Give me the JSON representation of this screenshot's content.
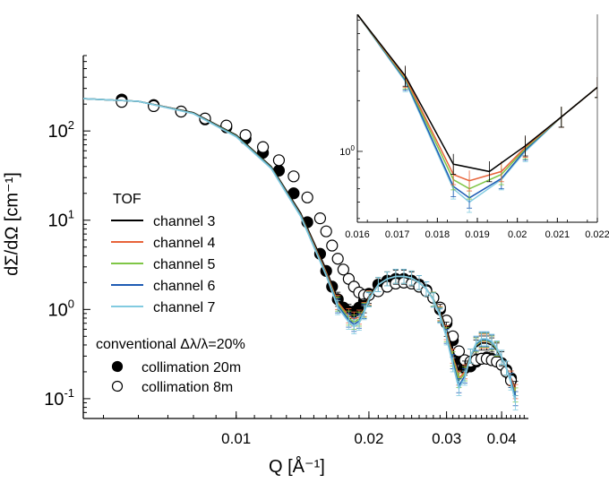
{
  "colors": {
    "channel_3": "#000000",
    "channel_4": "#e8643a",
    "channel_5": "#7fc646",
    "channel_6": "#1f5cb4",
    "channel_7": "#82cbe0"
  },
  "chart_data": [
    {
      "type": "line",
      "xlabel": "Q [Å⁻¹]",
      "ylabel": "dΣ/dΩ [cm⁻¹]",
      "x_scale": "log",
      "y_scale": "log",
      "xlim": [
        0.0045,
        0.046
      ],
      "ylim": [
        0.06,
        700
      ],
      "x_ticks": [
        {
          "value": 0.01,
          "label": "0.01"
        },
        {
          "value": 0.02,
          "label": "0.02"
        },
        {
          "value": 0.03,
          "label": "0.03"
        },
        {
          "value": 0.04,
          "label": "0.04"
        }
      ],
      "y_ticks": [
        {
          "value": 0.1,
          "base": "10",
          "exp": "-1"
        },
        {
          "value": 1,
          "base": "10",
          "exp": "0"
        },
        {
          "value": 10,
          "base": "10",
          "exp": "1"
        },
        {
          "value": 100,
          "base": "10",
          "exp": "2"
        }
      ],
      "legend": {
        "title": "TOF",
        "conventional_title": "conventional Δλ/λ=20%"
      },
      "series": [
        {
          "name": "channel 3",
          "style": "line",
          "color_key": "channel_3",
          "x": [
            0.0045,
            0.006,
            0.008,
            0.01,
            0.012,
            0.014,
            0.016,
            0.017,
            0.018,
            0.0185,
            0.019,
            0.0195,
            0.02,
            0.021,
            0.022,
            0.023,
            0.024,
            0.025,
            0.026,
            0.027,
            0.028,
            0.029,
            0.03,
            0.031,
            0.032,
            0.033,
            0.034,
            0.035,
            0.036,
            0.037,
            0.038,
            0.039,
            0.04,
            0.041,
            0.042,
            0.043
          ],
          "y": [
            230,
            215,
            160,
            90,
            40,
            12,
            2.8,
            1.3,
            0.95,
            0.88,
            0.92,
            1.1,
            1.4,
            1.9,
            2.2,
            2.3,
            2.3,
            2.2,
            2.0,
            1.7,
            1.3,
            0.95,
            0.6,
            0.35,
            0.2,
            0.22,
            0.3,
            0.38,
            0.42,
            0.42,
            0.4,
            0.35,
            0.28,
            0.22,
            0.17,
            0.13
          ]
        },
        {
          "name": "channel 4",
          "style": "line",
          "color_key": "channel_4",
          "x": [
            0.0045,
            0.006,
            0.008,
            0.01,
            0.012,
            0.014,
            0.016,
            0.017,
            0.018,
            0.0185,
            0.019,
            0.0195,
            0.02,
            0.021,
            0.022,
            0.023,
            0.024,
            0.025,
            0.026,
            0.027,
            0.028,
            0.029,
            0.03,
            0.031,
            0.032,
            0.033,
            0.034,
            0.035,
            0.036,
            0.037,
            0.038,
            0.039,
            0.04,
            0.041,
            0.042,
            0.043
          ],
          "y": [
            230,
            215,
            158,
            88,
            39,
            11.5,
            2.6,
            1.2,
            0.85,
            0.78,
            0.82,
            1.0,
            1.35,
            1.9,
            2.2,
            2.35,
            2.35,
            2.25,
            2.0,
            1.7,
            1.3,
            0.9,
            0.55,
            0.3,
            0.17,
            0.2,
            0.3,
            0.4,
            0.44,
            0.44,
            0.42,
            0.36,
            0.29,
            0.22,
            0.17,
            0.12
          ]
        },
        {
          "name": "channel 5",
          "style": "line",
          "color_key": "channel_5",
          "x": [
            0.0045,
            0.006,
            0.008,
            0.01,
            0.012,
            0.014,
            0.016,
            0.017,
            0.018,
            0.0185,
            0.019,
            0.0195,
            0.02,
            0.021,
            0.022,
            0.023,
            0.024,
            0.025,
            0.026,
            0.027,
            0.028,
            0.029,
            0.03,
            0.031,
            0.032,
            0.033,
            0.034,
            0.035,
            0.036,
            0.037,
            0.038,
            0.039,
            0.04,
            0.041,
            0.042,
            0.043
          ],
          "y": [
            230,
            215,
            158,
            88,
            39,
            11.4,
            2.5,
            1.15,
            0.8,
            0.72,
            0.78,
            0.98,
            1.32,
            1.9,
            2.2,
            2.35,
            2.35,
            2.25,
            2.0,
            1.7,
            1.3,
            0.88,
            0.52,
            0.28,
            0.16,
            0.19,
            0.3,
            0.4,
            0.45,
            0.45,
            0.42,
            0.36,
            0.29,
            0.22,
            0.16,
            0.11
          ]
        },
        {
          "name": "channel 6",
          "style": "line",
          "color_key": "channel_6",
          "x": [
            0.0045,
            0.006,
            0.008,
            0.01,
            0.012,
            0.014,
            0.016,
            0.017,
            0.018,
            0.0185,
            0.019,
            0.0195,
            0.02,
            0.021,
            0.022,
            0.023,
            0.024,
            0.025,
            0.026,
            0.027,
            0.028,
            0.029,
            0.03,
            0.031,
            0.032,
            0.033,
            0.034,
            0.035,
            0.036,
            0.037,
            0.038,
            0.039,
            0.04,
            0.041,
            0.042,
            0.043
          ],
          "y": [
            230,
            215,
            157,
            87,
            38.5,
            11.2,
            2.45,
            1.1,
            0.76,
            0.68,
            0.74,
            0.95,
            1.3,
            1.9,
            2.2,
            2.35,
            2.35,
            2.25,
            2.0,
            1.7,
            1.28,
            0.86,
            0.5,
            0.26,
            0.14,
            0.18,
            0.3,
            0.41,
            0.46,
            0.46,
            0.43,
            0.37,
            0.29,
            0.22,
            0.16,
            0.1
          ]
        },
        {
          "name": "channel 7",
          "style": "line",
          "color_key": "channel_7",
          "x": [
            0.0045,
            0.006,
            0.008,
            0.01,
            0.012,
            0.014,
            0.016,
            0.017,
            0.018,
            0.0185,
            0.019,
            0.0195,
            0.02,
            0.021,
            0.022,
            0.023,
            0.024,
            0.025,
            0.026,
            0.027,
            0.028,
            0.029,
            0.03,
            0.031,
            0.032,
            0.033,
            0.034,
            0.035,
            0.036,
            0.037,
            0.038,
            0.039,
            0.04,
            0.041,
            0.042,
            0.043
          ],
          "y": [
            230,
            215,
            156,
            86,
            38,
            11,
            2.4,
            1.05,
            0.72,
            0.64,
            0.7,
            0.92,
            1.28,
            1.9,
            2.2,
            2.35,
            2.35,
            2.25,
            2.0,
            1.7,
            1.27,
            0.84,
            0.48,
            0.24,
            0.13,
            0.17,
            0.3,
            0.42,
            0.47,
            0.47,
            0.44,
            0.37,
            0.29,
            0.22,
            0.15,
            0.09
          ]
        },
        {
          "name": "collimation 20m",
          "style": "filled",
          "color_key": "channel_3",
          "x": [
            0.0055,
            0.0065,
            0.0075,
            0.0085,
            0.0095,
            0.0105,
            0.0115,
            0.0125,
            0.0135,
            0.0145,
            0.0155,
            0.016,
            0.0165,
            0.017,
            0.0175,
            0.018,
            0.0185,
            0.019,
            0.0195,
            0.02,
            0.021,
            0.022,
            0.023,
            0.024,
            0.025,
            0.026,
            0.027,
            0.028,
            0.029,
            0.03,
            0.031,
            0.032,
            0.033,
            0.034,
            0.035,
            0.036,
            0.037,
            0.038,
            0.039,
            0.04,
            0.041,
            0.042
          ],
          "y": [
            225,
            195,
            165,
            135,
            110,
            82,
            57,
            36,
            20,
            9.5,
            4.2,
            2.7,
            1.8,
            1.3,
            1.05,
            0.95,
            0.95,
            1.05,
            1.25,
            1.5,
            1.9,
            2.1,
            2.2,
            2.2,
            2.1,
            1.9,
            1.65,
            1.35,
            1.0,
            0.7,
            0.45,
            0.28,
            0.22,
            0.23,
            0.26,
            0.28,
            0.29,
            0.28,
            0.27,
            0.25,
            0.21,
            0.17
          ]
        },
        {
          "name": "collimation 8m",
          "style": "open",
          "color_key": "channel_3",
          "x": [
            0.0055,
            0.0065,
            0.0075,
            0.0085,
            0.0095,
            0.0105,
            0.0115,
            0.0125,
            0.0135,
            0.0145,
            0.0155,
            0.016,
            0.0165,
            0.017,
            0.0175,
            0.018,
            0.0185,
            0.019,
            0.0195,
            0.02,
            0.021,
            0.022,
            0.023,
            0.024,
            0.025,
            0.026,
            0.027,
            0.028,
            0.029,
            0.03,
            0.031,
            0.032,
            0.033,
            0.034,
            0.035,
            0.036,
            0.037,
            0.038,
            0.039,
            0.04,
            0.041,
            0.042
          ],
          "y": [
            212,
            190,
            165,
            138,
            115,
            90,
            66,
            47,
            31,
            18,
            10.5,
            7.5,
            5.2,
            3.7,
            2.8,
            2.2,
            1.8,
            1.55,
            1.45,
            1.45,
            1.6,
            1.8,
            1.95,
            2.0,
            1.95,
            1.8,
            1.6,
            1.35,
            1.05,
            0.75,
            0.5,
            0.34,
            0.27,
            0.26,
            0.27,
            0.28,
            0.28,
            0.27,
            0.26,
            0.24,
            0.2,
            0.16
          ]
        }
      ]
    },
    {
      "type": "line",
      "xlabel": "",
      "ylabel": "",
      "y_scale": "log",
      "xlim": [
        0.016,
        0.022
      ],
      "ylim": [
        0.38,
        6.5
      ],
      "x_ticks": [
        {
          "value": 0.016,
          "label": "0.016"
        },
        {
          "value": 0.017,
          "label": "0.017"
        },
        {
          "value": 0.018,
          "label": "0.018"
        },
        {
          "value": 0.019,
          "label": "0.019"
        },
        {
          "value": 0.02,
          "label": "0.02"
        },
        {
          "value": 0.021,
          "label": "0.021"
        },
        {
          "value": 0.022,
          "label": "0.022"
        }
      ],
      "y_ticks": [
        {
          "value": 1,
          "base": "10",
          "exp": "0"
        }
      ],
      "series": [
        {
          "name": "channel 3",
          "color_key": "channel_3",
          "x": [
            0.016,
            0.0172,
            0.0184,
            0.0193,
            0.0202,
            0.0211,
            0.022
          ],
          "y": [
            6.5,
            2.8,
            0.84,
            0.76,
            1.08,
            1.6,
            2.4
          ]
        },
        {
          "name": "channel 4",
          "color_key": "channel_4",
          "x": [
            0.016,
            0.0172,
            0.0184,
            0.0188,
            0.0196,
            0.0202,
            0.0211,
            0.022
          ],
          "y": [
            6.5,
            2.75,
            0.73,
            0.67,
            0.76,
            1.06,
            1.6,
            2.4
          ]
        },
        {
          "name": "channel 5",
          "color_key": "channel_5",
          "x": [
            0.016,
            0.0172,
            0.0184,
            0.0188,
            0.0196,
            0.0202,
            0.0211,
            0.022
          ],
          "y": [
            6.5,
            2.7,
            0.68,
            0.6,
            0.73,
            1.04,
            1.6,
            2.4
          ]
        },
        {
          "name": "channel 6",
          "color_key": "channel_6",
          "x": [
            0.016,
            0.0172,
            0.0184,
            0.0188,
            0.0196,
            0.0202,
            0.0211,
            0.022
          ],
          "y": [
            6.5,
            2.65,
            0.62,
            0.53,
            0.69,
            1.02,
            1.6,
            2.4
          ]
        },
        {
          "name": "channel 7",
          "color_key": "channel_7",
          "x": [
            0.016,
            0.0172,
            0.0184,
            0.0188,
            0.0196,
            0.0202,
            0.0211,
            0.022
          ],
          "y": [
            6.5,
            2.6,
            0.6,
            0.5,
            0.68,
            1.0,
            1.6,
            2.4
          ]
        }
      ]
    }
  ]
}
